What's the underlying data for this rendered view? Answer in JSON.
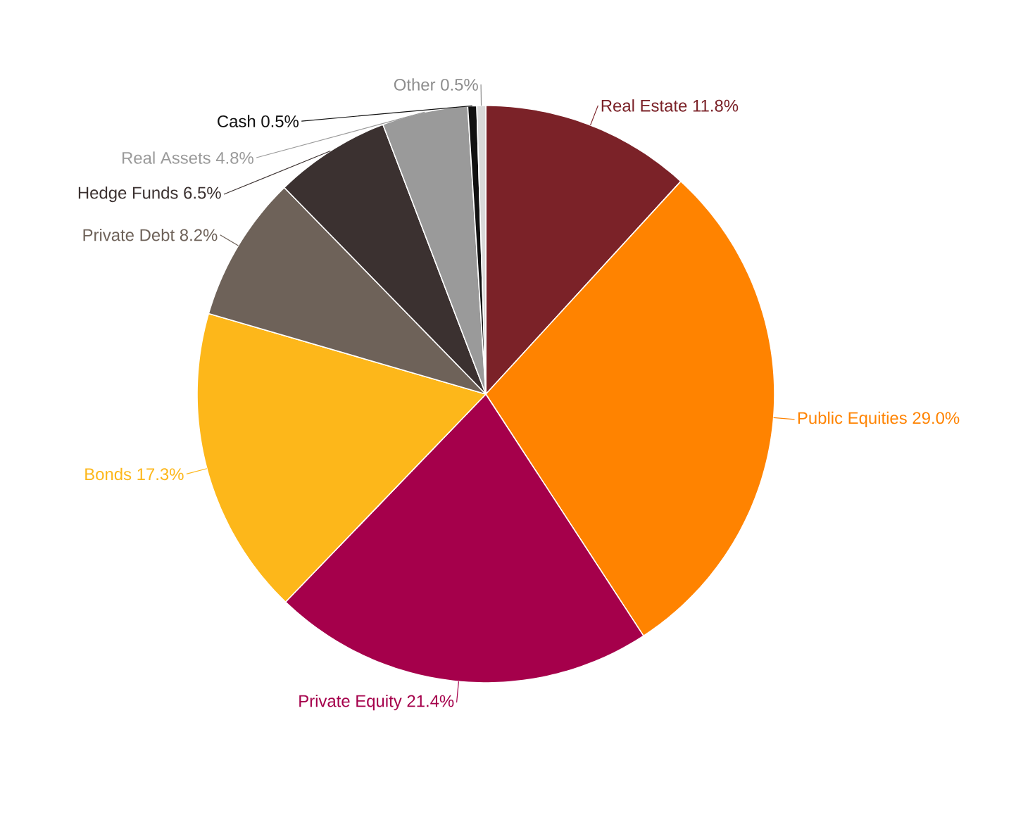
{
  "chart_data": {
    "type": "pie",
    "categories": [
      "Real Estate",
      "Public Equities",
      "Private Equity",
      "Bonds",
      "Private Debt",
      "Hedge Funds",
      "Real Assets",
      "Cash",
      "Other"
    ],
    "values": [
      11.8,
      29.0,
      21.4,
      17.3,
      8.2,
      6.5,
      4.8,
      0.5,
      0.5
    ],
    "value_labels": [
      "11.8%",
      "29.0%",
      "21.4%",
      "17.3%",
      "8.2%",
      "6.5%",
      "4.8%",
      "0.5%",
      "0.5%"
    ],
    "colors": [
      "#7b2228",
      "#ff8300",
      "#a5004b",
      "#fdb71a",
      "#6e6259",
      "#3b3130",
      "#9a9a9a",
      "#111111",
      "#d9d9d9"
    ]
  }
}
